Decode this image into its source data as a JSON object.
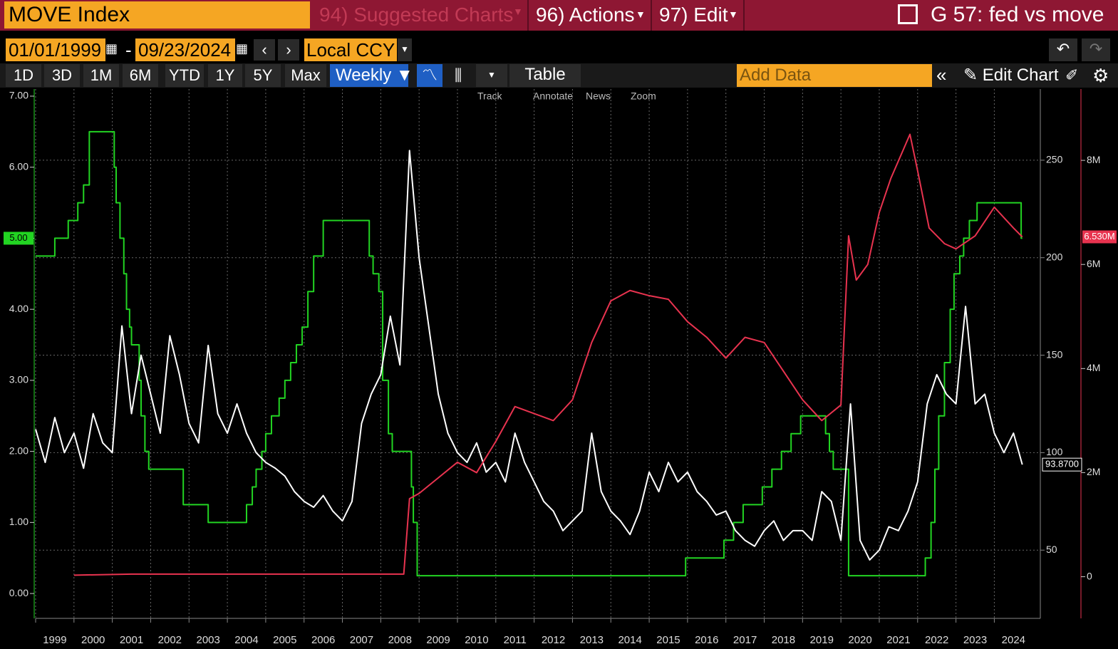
{
  "header": {
    "title": "MOVE Index",
    "menus": [
      "94) Suggested Charts",
      "96) Actions",
      "97) Edit"
    ],
    "chart_id": "G 57: fed vs move"
  },
  "controls": {
    "start_date": "01/01/1999",
    "date_separator": "-",
    "end_date": "09/23/2024",
    "currency": "Local CCY"
  },
  "toolbar": {
    "periods": [
      "1D",
      "3D",
      "1M",
      "6M",
      "YTD",
      "1Y",
      "5Y",
      "Max"
    ],
    "frequency": "Weekly",
    "table": "Table",
    "add_data": "Add Data",
    "edit_chart": "Edit Chart"
  },
  "chart_tools": [
    "Track",
    "Annotate",
    "News",
    "Zoom"
  ],
  "chart_data": {
    "type": "line",
    "xlim": [
      1999,
      2025.2
    ],
    "xticks": [
      1999,
      2000,
      2001,
      2002,
      2003,
      2004,
      2005,
      2006,
      2007,
      2008,
      2009,
      2010,
      2011,
      2012,
      2013,
      2014,
      2015,
      2016,
      2017,
      2018,
      2019,
      2020,
      2021,
      2022,
      2023,
      2024
    ],
    "ylim": [
      -0.35,
      7.1
    ],
    "yticks": [
      {
        "value": 0,
        "label": "0.00"
      },
      {
        "value": 1,
        "label": "1.00"
      },
      {
        "value": 2,
        "label": "2.00"
      },
      {
        "value": 3,
        "label": "3.00"
      },
      {
        "value": 4,
        "label": "4.00"
      },
      {
        "value": 5,
        "label": "5.00"
      },
      {
        "value": 6,
        "label": "6.00"
      },
      {
        "value": 7,
        "label": "7.00"
      }
    ],
    "y2lim": [
      15,
      286.5
    ],
    "y2ticks": [
      50,
      100,
      150,
      200,
      250
    ],
    "y3lim": [
      -0.8,
      9.37
    ],
    "y3ticks": [
      0,
      {
        "value": 2,
        "label": "2M"
      },
      {
        "value": 4,
        "label": "4M"
      },
      {
        "value": 6,
        "label": "6M"
      },
      {
        "value": 8,
        "label": "8M"
      }
    ],
    "grid": true,
    "series": [
      {
        "color": "#22d422",
        "axis": "y",
        "step": "after",
        "last_label": "5.00",
        "x": [
          1999.0,
          1999.5,
          1999.85,
          2000.1,
          2000.25,
          2000.4,
          2001.05,
          2001.1,
          2001.2,
          2001.3,
          2001.37,
          2001.45,
          2001.5,
          2001.7,
          2001.75,
          2001.85,
          2001.95,
          2002.85,
          2003.5,
          2004.5,
          2004.65,
          2004.75,
          2004.9,
          2005.0,
          2005.15,
          2005.35,
          2005.5,
          2005.65,
          2005.8,
          2005.95,
          2006.1,
          2006.25,
          2006.5,
          2007.7,
          2007.8,
          2007.95,
          2008.05,
          2008.2,
          2008.3,
          2008.8,
          2008.85,
          2008.95,
          2015.95,
          2016.95,
          2017.2,
          2017.45,
          2017.95,
          2018.2,
          2018.45,
          2018.7,
          2018.95,
          2019.6,
          2019.7,
          2019.8,
          2020.2,
          2022.2,
          2022.35,
          2022.45,
          2022.55,
          2022.7,
          2022.85,
          2022.95,
          2023.1,
          2023.2,
          2023.35,
          2023.55,
          2024.7,
          2024.73
        ],
        "values": [
          4.75,
          5.0,
          5.25,
          5.5,
          5.75,
          6.5,
          6.0,
          5.5,
          5.0,
          4.5,
          4.0,
          3.75,
          3.5,
          3.0,
          2.5,
          2.0,
          1.75,
          1.25,
          1.0,
          1.25,
          1.5,
          1.75,
          2.0,
          2.25,
          2.5,
          2.75,
          3.0,
          3.25,
          3.5,
          3.75,
          4.25,
          4.75,
          5.25,
          4.75,
          4.5,
          4.25,
          3.0,
          2.25,
          2.0,
          1.5,
          1.0,
          0.25,
          0.5,
          0.75,
          1.0,
          1.25,
          1.5,
          1.75,
          2.0,
          2.25,
          2.5,
          2.25,
          2.0,
          1.75,
          0.25,
          0.5,
          1.0,
          1.75,
          2.5,
          3.25,
          4.0,
          4.5,
          4.75,
          5.0,
          5.25,
          5.5,
          5.0,
          5.0
        ]
      },
      {
        "color": "#ffffff",
        "axis": "y2",
        "last_label": "93.8700",
        "x": [
          1999.0,
          1999.25,
          1999.5,
          1999.75,
          2000.0,
          2000.25,
          2000.5,
          2000.75,
          2001.0,
          2001.25,
          2001.5,
          2001.75,
          2002.0,
          2002.25,
          2002.5,
          2002.75,
          2003.0,
          2003.25,
          2003.5,
          2003.75,
          2004.0,
          2004.25,
          2004.5,
          2004.75,
          2005.0,
          2005.25,
          2005.5,
          2005.75,
          2006.0,
          2006.25,
          2006.5,
          2006.75,
          2007.0,
          2007.25,
          2007.5,
          2007.75,
          2008.0,
          2008.25,
          2008.5,
          2008.75,
          2009.0,
          2009.25,
          2009.5,
          2009.75,
          2010.0,
          2010.25,
          2010.5,
          2010.75,
          2011.0,
          2011.25,
          2011.5,
          2011.75,
          2012.0,
          2012.25,
          2012.5,
          2012.75,
          2013.0,
          2013.25,
          2013.5,
          2013.75,
          2014.0,
          2014.25,
          2014.5,
          2014.75,
          2015.0,
          2015.25,
          2015.5,
          2015.75,
          2016.0,
          2016.25,
          2016.5,
          2016.75,
          2017.0,
          2017.25,
          2017.5,
          2017.75,
          2018.0,
          2018.25,
          2018.5,
          2018.75,
          2019.0,
          2019.25,
          2019.5,
          2019.75,
          2020.0,
          2020.25,
          2020.5,
          2020.75,
          2021.0,
          2021.25,
          2021.5,
          2021.75,
          2022.0,
          2022.25,
          2022.5,
          2022.75,
          2023.0,
          2023.25,
          2023.5,
          2023.75,
          2024.0,
          2024.25,
          2024.5,
          2024.73
        ],
        "values": [
          112,
          95,
          118,
          100,
          110,
          92,
          120,
          105,
          100,
          165,
          120,
          150,
          130,
          110,
          160,
          140,
          115,
          105,
          155,
          120,
          110,
          125,
          110,
          100,
          95,
          92,
          88,
          80,
          75,
          72,
          78,
          70,
          65,
          75,
          115,
          130,
          140,
          170,
          145,
          255,
          200,
          165,
          130,
          110,
          100,
          95,
          105,
          90,
          95,
          85,
          110,
          95,
          85,
          75,
          70,
          60,
          65,
          70,
          110,
          80,
          70,
          65,
          58,
          70,
          90,
          80,
          95,
          85,
          90,
          80,
          75,
          68,
          70,
          60,
          55,
          52,
          60,
          65,
          55,
          60,
          60,
          55,
          80,
          75,
          55,
          125,
          55,
          45,
          50,
          62,
          60,
          70,
          85,
          125,
          140,
          130,
          125,
          175,
          125,
          130,
          110,
          100,
          110,
          93.87
        ]
      },
      {
        "color": "#e8334f",
        "axis": "y3",
        "last_label": "6.530M",
        "x": [
          2000.0,
          2001.5,
          2008.6,
          2008.75,
          2009.0,
          2009.5,
          2010.0,
          2010.5,
          2011.0,
          2011.5,
          2012.5,
          2013.0,
          2013.5,
          2014.0,
          2014.5,
          2015.0,
          2015.5,
          2016.0,
          2016.5,
          2017.0,
          2017.5,
          2018.0,
          2018.5,
          2019.0,
          2019.5,
          2020.0,
          2020.2,
          2020.4,
          2020.7,
          2021.0,
          2021.3,
          2021.8,
          2022.0,
          2022.3,
          2022.7,
          2023.0,
          2023.5,
          2024.0,
          2024.5,
          2024.73
        ],
        "values": [
          0.03,
          0.05,
          0.05,
          1.5,
          1.6,
          1.9,
          2.2,
          2.0,
          2.6,
          3.27,
          3.0,
          3.4,
          4.5,
          5.3,
          5.5,
          5.4,
          5.33,
          4.9,
          4.6,
          4.2,
          4.6,
          4.5,
          3.95,
          3.4,
          3.0,
          3.3,
          6.55,
          5.7,
          6.0,
          7.0,
          7.65,
          8.5,
          7.8,
          6.7,
          6.4,
          6.3,
          6.55,
          7.1,
          6.7,
          6.53
        ]
      }
    ]
  }
}
